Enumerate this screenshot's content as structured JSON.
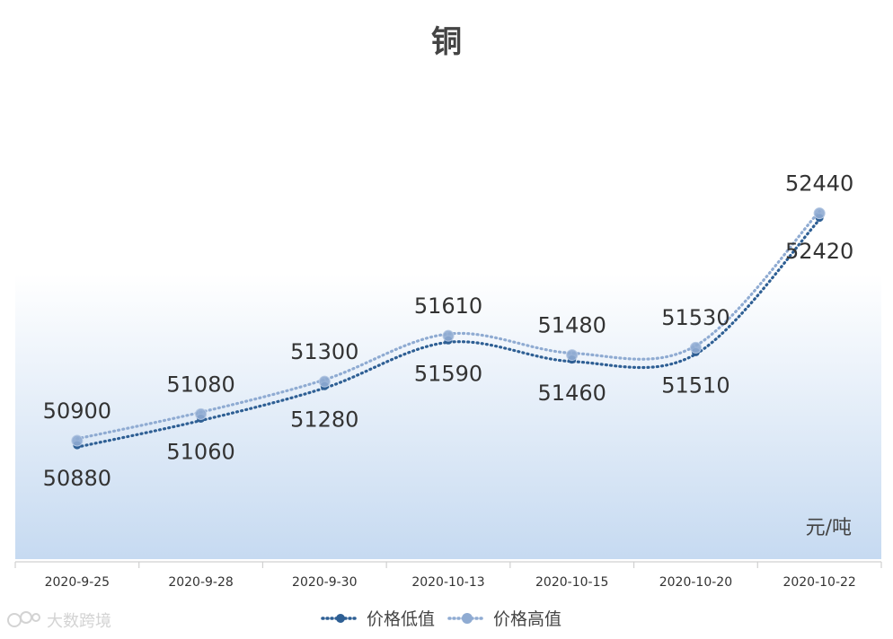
{
  "chart_data": {
    "type": "line",
    "title": "铜",
    "categories": [
      "2020-9-25",
      "2020-9-28",
      "2020-9-30",
      "2020-10-13",
      "2020-10-15",
      "2020-10-20",
      "2020-10-22"
    ],
    "series": [
      {
        "name": "价格低值",
        "values": [
          50880,
          51060,
          51280,
          51590,
          51460,
          51510,
          52420
        ],
        "color": "#2e5f94"
      },
      {
        "name": "价格高值",
        "values": [
          50900,
          51080,
          51300,
          51610,
          51480,
          51530,
          52440
        ],
        "color": "#8fabd2"
      }
    ],
    "unit": "元/吨",
    "xlabel": "",
    "ylabel": "",
    "ylim": [
      50100,
      53200
    ],
    "grid": false,
    "legend_position": "bottom",
    "label_colors": {
      "title": "#444444",
      "labels": "#333333"
    },
    "background_gradient": [
      "#ffffff",
      "#c6daf1"
    ]
  },
  "watermark": {
    "text": "大数跨境"
  }
}
